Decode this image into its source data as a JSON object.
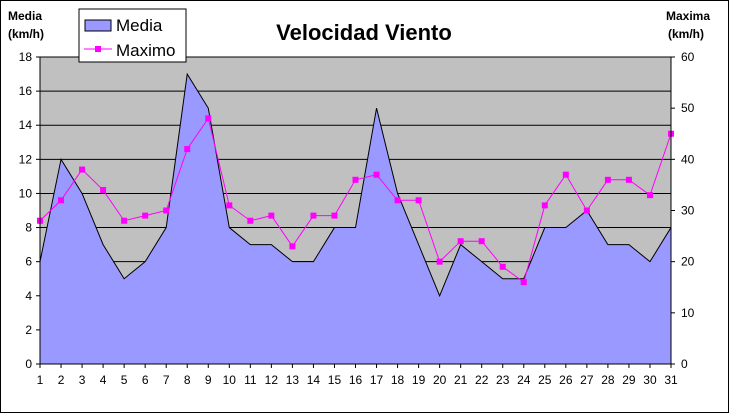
{
  "chart_data": {
    "type": "area+line",
    "title": "Velocidad Viento",
    "left_axis_label": [
      "Media",
      "(km/h)"
    ],
    "right_axis_label": [
      "Maxima",
      "(km/h)"
    ],
    "x": [
      1,
      2,
      3,
      4,
      5,
      6,
      7,
      8,
      9,
      10,
      11,
      12,
      13,
      14,
      15,
      16,
      17,
      18,
      19,
      20,
      21,
      22,
      23,
      24,
      25,
      26,
      27,
      28,
      29,
      30,
      31
    ],
    "left_ylim": [
      0,
      18
    ],
    "left_ticks": [
      0,
      2,
      4,
      6,
      8,
      10,
      12,
      14,
      16,
      18
    ],
    "right_ylim": [
      0,
      60
    ],
    "right_ticks": [
      0,
      10,
      20,
      30,
      40,
      50,
      60
    ],
    "grid": true,
    "legend_position": "top-left",
    "series": [
      {
        "name": "Media",
        "type": "area",
        "axis": "left",
        "color": "#9999ff",
        "values": [
          6,
          12,
          10,
          7,
          5,
          6,
          8,
          17,
          15,
          8,
          7,
          7,
          6,
          6,
          8,
          8,
          15,
          10,
          7,
          4,
          7,
          6,
          5,
          5,
          8,
          8,
          9,
          7,
          7,
          6,
          8
        ]
      },
      {
        "name": "Maximo",
        "type": "line",
        "axis": "right",
        "color": "#ff00ff",
        "values": [
          28,
          32,
          38,
          34,
          28,
          29,
          30,
          42,
          48,
          31,
          28,
          29,
          23,
          29,
          29,
          36,
          37,
          32,
          32,
          20,
          24,
          24,
          19,
          16,
          31,
          37,
          30,
          36,
          36,
          33,
          45
        ]
      }
    ]
  }
}
